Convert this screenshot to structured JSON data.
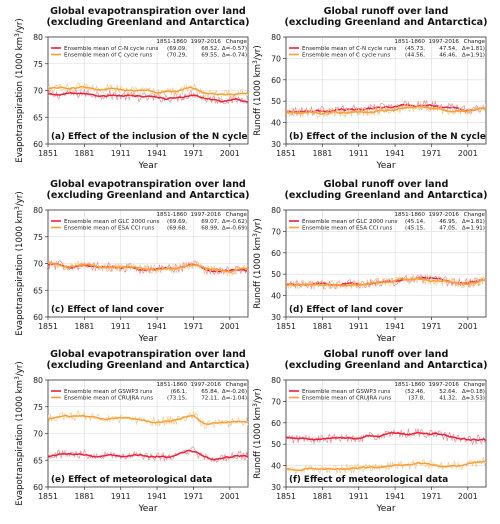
{
  "colors": {
    "c1": "#e8233a",
    "c2": "#f6a03a",
    "c1_light": "#f28a94",
    "c2_light": "#f9c98a",
    "grid": "#dcdcdc",
    "axis": "#333333"
  },
  "chart_data": [
    {
      "panel": "a",
      "type": "line",
      "title_lines": [
        "Global evapotranspiration over land",
        "(excluding Greenland and Antarctica)"
      ],
      "ylabel_main": "Evapotranspiration (1000 km",
      "ylabel_sup": "3",
      "ylabel_end": "/yr)",
      "xlabel": "Year",
      "ylim": [
        60,
        80
      ],
      "yticks": [
        60,
        65,
        70,
        75,
        80
      ],
      "xticks": [
        1851,
        1881,
        1911,
        1941,
        1971,
        2001
      ],
      "xlim": [
        1851,
        2016
      ],
      "annotation": "(a) Effect of the inclusion of the N cycle",
      "table_headers": [
        "1851-1860",
        "1997-2016",
        "Change"
      ],
      "series": [
        {
          "name": "Ensemble mean of C-N cycle runs",
          "color": "#e8233a",
          "v1851": "(69.09,",
          "v1997": "68.52,",
          "change": "Δ=-0.57)",
          "anchors": [
            [
              1851,
              69.1
            ],
            [
              1881,
              69.5
            ],
            [
              1911,
              69.0
            ],
            [
              1941,
              68.6
            ],
            [
              1960,
              68.8
            ],
            [
              1971,
              69.6
            ],
            [
              1980,
              68.5
            ],
            [
              2001,
              68.2
            ],
            [
              2016,
              68.5
            ]
          ]
        },
        {
          "name": "Ensemble mean of C cycle runs",
          "color": "#f6a03a",
          "v1851": "(70.29,",
          "v1997": "69.55,",
          "change": "Δ=-0.74)",
          "anchors": [
            [
              1851,
              70.3
            ],
            [
              1881,
              70.6
            ],
            [
              1911,
              70.1
            ],
            [
              1941,
              69.8
            ],
            [
              1960,
              69.9
            ],
            [
              1971,
              70.7
            ],
            [
              1980,
              69.4
            ],
            [
              2001,
              69.2
            ],
            [
              2016,
              69.6
            ]
          ]
        }
      ]
    },
    {
      "panel": "b",
      "type": "line",
      "title_lines": [
        "Global runoff over land",
        "(excluding Greenland and Antarctica)"
      ],
      "ylabel_main": "Runoff (1000 km",
      "ylabel_sup": "3",
      "ylabel_end": "/yr)",
      "xlabel": "Year",
      "ylim": [
        30,
        80
      ],
      "yticks": [
        30,
        40,
        50,
        60,
        70,
        80
      ],
      "xticks": [
        1851,
        1881,
        1911,
        1941,
        1971,
        2001
      ],
      "xlim": [
        1851,
        2016
      ],
      "annotation": "(b) Effect of the inclusion of the N cycle",
      "table_headers": [
        "1851-1860",
        "1997-2016",
        "Change"
      ],
      "series": [
        {
          "name": "Ensemble mean of C-N cycle runs",
          "color": "#e8233a",
          "v1851": "(45.73,",
          "v1997": "47.54,",
          "change": "Δ=1.81)",
          "anchors": [
            [
              1851,
              45.7
            ],
            [
              1881,
              45.5
            ],
            [
              1911,
              46.0
            ],
            [
              1941,
              47.2
            ],
            [
              1960,
              48.5
            ],
            [
              1971,
              47.8
            ],
            [
              1985,
              47.0
            ],
            [
              2001,
              46.0
            ],
            [
              2016,
              47.5
            ]
          ]
        },
        {
          "name": "Ensemble mean of C cycle runs",
          "color": "#f6a03a",
          "v1851": "(44.56,",
          "v1997": "46.46,",
          "change": "Δ=1.91)",
          "anchors": [
            [
              1851,
              44.6
            ],
            [
              1881,
              44.4
            ],
            [
              1911,
              44.9
            ],
            [
              1941,
              46.1
            ],
            [
              1960,
              47.3
            ],
            [
              1971,
              46.7
            ],
            [
              1985,
              45.9
            ],
            [
              2001,
              45.0
            ],
            [
              2016,
              46.5
            ]
          ]
        }
      ]
    },
    {
      "panel": "c",
      "type": "line",
      "title_lines": [
        "Global evapotranspiration over land",
        "(excluding Greenland and Antarctica)"
      ],
      "ylabel_main": "Evapotranspiration (1000 km",
      "ylabel_sup": "3",
      "ylabel_end": "/yr)",
      "xlabel": "Year",
      "ylim": [
        60,
        80
      ],
      "yticks": [
        60,
        65,
        70,
        75,
        80
      ],
      "xticks": [
        1851,
        1881,
        1911,
        1941,
        1971,
        2001
      ],
      "xlim": [
        1851,
        2016
      ],
      "annotation": "(c) Effect of land cover",
      "table_headers": [
        "1851-1860",
        "1997-2016",
        "Change"
      ],
      "series": [
        {
          "name": "Ensemble mean of GLC 2000 runs",
          "color": "#e8233a",
          "v1851": "(69.69,",
          "v1997": "69.07,",
          "change": "Δ=-0.62)",
          "anchors": [
            [
              1851,
              69.7
            ],
            [
              1881,
              69.5
            ],
            [
              1911,
              69.2
            ],
            [
              1941,
              68.9
            ],
            [
              1960,
              69.2
            ],
            [
              1971,
              70.0
            ],
            [
              1980,
              68.8
            ],
            [
              2001,
              68.7
            ],
            [
              2016,
              69.0
            ]
          ]
        },
        {
          "name": "Ensemble mean of ESA CCI runs",
          "color": "#f6a03a",
          "v1851": "(69.68,",
          "v1997": "68.99,",
          "change": "Δ=-0.69)",
          "anchors": [
            [
              1851,
              69.7
            ],
            [
              1881,
              69.5
            ],
            [
              1911,
              69.2
            ],
            [
              1941,
              68.9
            ],
            [
              1960,
              69.2
            ],
            [
              1971,
              70.0
            ],
            [
              1980,
              68.8
            ],
            [
              2001,
              68.6
            ],
            [
              2016,
              69.0
            ]
          ]
        }
      ]
    },
    {
      "panel": "d",
      "type": "line",
      "title_lines": [
        "Global runoff over land",
        "(excluding Greenland and Antarctica)"
      ],
      "ylabel_main": "Runoff (1000 km",
      "ylabel_sup": "3",
      "ylabel_end": "/yr)",
      "xlabel": "Year",
      "ylim": [
        30,
        80
      ],
      "yticks": [
        30,
        40,
        50,
        60,
        70,
        80
      ],
      "xticks": [
        1851,
        1881,
        1911,
        1941,
        1971,
        2001
      ],
      "xlim": [
        1851,
        2016
      ],
      "annotation": "(d) Effect of land cover",
      "table_headers": [
        "1851-1860",
        "1997-2016",
        "Change"
      ],
      "series": [
        {
          "name": "Ensemble mean of GLC 2000 runs",
          "color": "#e8233a",
          "v1851": "(45.14,",
          "v1997": "46.95,",
          "change": "Δ=1.81)",
          "anchors": [
            [
              1851,
              45.1
            ],
            [
              1881,
              45.0
            ],
            [
              1911,
              45.5
            ],
            [
              1941,
              46.7
            ],
            [
              1960,
              47.8
            ],
            [
              1971,
              47.2
            ],
            [
              1985,
              46.5
            ],
            [
              2001,
              45.6
            ],
            [
              2016,
              47.0
            ]
          ]
        },
        {
          "name": "Ensemble mean of ESA CCI runs",
          "color": "#f6a03a",
          "v1851": "(45.15,",
          "v1997": "47.05,",
          "change": "Δ=1.91)",
          "anchors": [
            [
              1851,
              45.1
            ],
            [
              1881,
              45.0
            ],
            [
              1911,
              45.5
            ],
            [
              1941,
              46.7
            ],
            [
              1960,
              47.8
            ],
            [
              1971,
              47.2
            ],
            [
              1985,
              46.5
            ],
            [
              2001,
              45.6
            ],
            [
              2016,
              47.1
            ]
          ]
        }
      ]
    },
    {
      "panel": "e",
      "type": "line",
      "title_lines": [
        "Global evapotranspiration over land",
        "(excluding Greenland and Antarctica)"
      ],
      "ylabel_main": "Evapotranspiration (1000 km",
      "ylabel_sup": "3",
      "ylabel_end": "/yr)",
      "xlabel": "Year",
      "ylim": [
        60,
        80
      ],
      "yticks": [
        60,
        65,
        70,
        75,
        80
      ],
      "xticks": [
        1851,
        1881,
        1911,
        1941,
        1971,
        2001
      ],
      "xlim": [
        1851,
        2016
      ],
      "annotation": "(e) Effect of meteorological data",
      "table_headers": [
        "1851-1860",
        "1997-2016",
        "Change"
      ],
      "series": [
        {
          "name": "Ensemble mean of GSWP3 runs",
          "color": "#e8233a",
          "v1851": "(66.1,",
          "v1997": "65.84,",
          "change": "Δ=-0.26)",
          "anchors": [
            [
              1851,
              66.1
            ],
            [
              1881,
              66.2
            ],
            [
              1911,
              65.9
            ],
            [
              1941,
              65.6
            ],
            [
              1960,
              65.8
            ],
            [
              1971,
              66.9
            ],
            [
              1980,
              65.2
            ],
            [
              2001,
              65.6
            ],
            [
              2016,
              65.9
            ]
          ]
        },
        {
          "name": "Ensemble mean of CRUJRA runs",
          "color": "#f6a03a",
          "v1851": "(73.15,",
          "v1997": "72.11,",
          "change": "Δ=-1.04)",
          "anchors": [
            [
              1851,
              73.1
            ],
            [
              1881,
              73.4
            ],
            [
              1911,
              72.8
            ],
            [
              1941,
              72.3
            ],
            [
              1960,
              72.6
            ],
            [
              1971,
              73.6
            ],
            [
              1980,
              71.8
            ],
            [
              2001,
              71.9
            ],
            [
              2016,
              72.3
            ]
          ]
        }
      ]
    },
    {
      "panel": "f",
      "type": "line",
      "title_lines": [
        "Global runoff over land",
        "(excluding Greenland and Antarctica)"
      ],
      "ylabel_main": "Runoff (1000 km",
      "ylabel_sup": "3",
      "ylabel_end": "/yr)",
      "xlabel": "Year",
      "ylim": [
        30,
        80
      ],
      "yticks": [
        30,
        40,
        50,
        60,
        70,
        80
      ],
      "xticks": [
        1851,
        1881,
        1911,
        1941,
        1971,
        2001
      ],
      "xlim": [
        1851,
        2016
      ],
      "annotation": "(f) Effect of meteorological data",
      "table_headers": [
        "1851-1860",
        "1997-2016",
        "Change"
      ],
      "series": [
        {
          "name": "Ensemble mean of GSWP3 runs",
          "color": "#e8233a",
          "v1851": "(52.46,",
          "v1997": "52.64,",
          "change": "Δ=0.18)",
          "anchors": [
            [
              1851,
              52.5
            ],
            [
              1881,
              52.3
            ],
            [
              1911,
              53.2
            ],
            [
              1941,
              54.5
            ],
            [
              1960,
              55.5
            ],
            [
              1971,
              54.8
            ],
            [
              1985,
              53.5
            ],
            [
              2001,
              51.5
            ],
            [
              2016,
              52.8
            ]
          ]
        },
        {
          "name": "Ensemble mean of CRUJRA runs",
          "color": "#f6a03a",
          "v1851": "(37.8,",
          "v1997": "41.32,",
          "change": "Δ=3.53)",
          "anchors": [
            [
              1851,
              37.8
            ],
            [
              1881,
              37.9
            ],
            [
              1911,
              38.6
            ],
            [
              1941,
              39.6
            ],
            [
              1960,
              40.6
            ],
            [
              1971,
              40.5
            ],
            [
              1985,
              40.2
            ],
            [
              2001,
              40.4
            ],
            [
              2016,
              42.0
            ]
          ]
        }
      ]
    }
  ]
}
